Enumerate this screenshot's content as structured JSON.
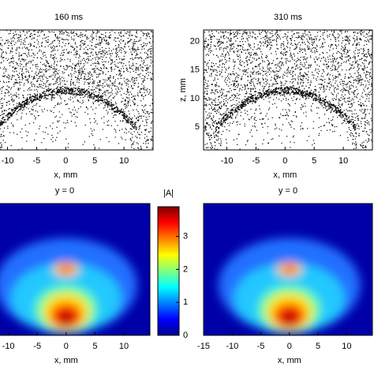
{
  "chart_data": [
    {
      "type": "scatter",
      "title": "160 ms",
      "xlabel": "x, mm",
      "xlim": [
        -14,
        15
      ],
      "ylim": [
        1,
        22
      ],
      "xticks": [
        -10,
        -5,
        0,
        5,
        10
      ],
      "color": "#000000"
    },
    {
      "type": "scatter",
      "title": "310 ms",
      "xlabel": "x, mm",
      "ylabel": "z, mm",
      "xlim": [
        -14,
        15
      ],
      "ylim": [
        1,
        22
      ],
      "xticks": [
        -10,
        -5,
        0,
        5,
        10
      ],
      "yticks": [
        5,
        10,
        15,
        20
      ],
      "color": "#000000"
    },
    {
      "type": "heatmap",
      "title": "y = 0",
      "xlabel": "x, mm",
      "xlim": [
        -15,
        14.5
      ],
      "xticks": [
        -10,
        -5,
        0,
        5,
        10
      ],
      "colorbar": {
        "label": "|A|",
        "lim": [
          0,
          3.9
        ],
        "ticks": [
          0,
          1,
          2,
          3
        ]
      }
    },
    {
      "type": "heatmap",
      "title": "y = 0",
      "xlabel": "x, mm",
      "xlim": [
        -15,
        14.5
      ],
      "xticks": [
        -15,
        -10,
        -5,
        0,
        5,
        10
      ]
    }
  ]
}
